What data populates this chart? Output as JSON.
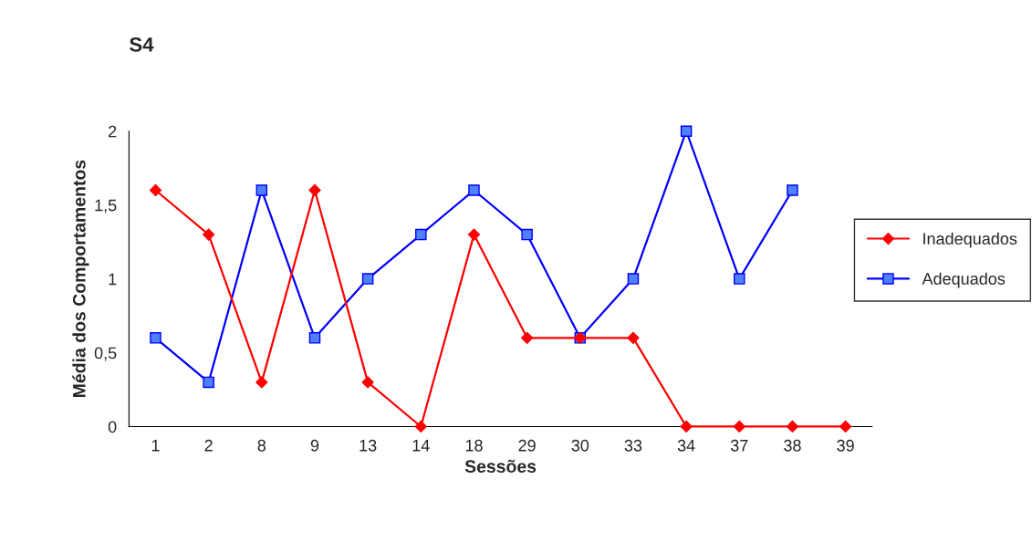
{
  "chart_data": {
    "type": "line",
    "title": "S4",
    "xlabel": "Sessões",
    "ylabel": "Média dos Comportamentos",
    "categories": [
      "1",
      "2",
      "8",
      "9",
      "13",
      "14",
      "18",
      "29",
      "30",
      "33",
      "34",
      "37",
      "38",
      "39"
    ],
    "series": [
      {
        "name": "Inadequados",
        "color": "#ff0000",
        "marker": "diamond",
        "values": [
          1.6,
          1.3,
          0.3,
          1.6,
          0.3,
          0,
          1.3,
          0.6,
          0.6,
          0.6,
          0,
          0,
          0,
          0
        ]
      },
      {
        "name": "Adequados",
        "color": "#0000ff",
        "marker": "square",
        "values": [
          0.6,
          0.3,
          1.6,
          0.6,
          1,
          1.3,
          1.6,
          1.3,
          0.6,
          1,
          2,
          1,
          1.6,
          null
        ]
      }
    ],
    "ylim": [
      0,
      2
    ],
    "yticks": [
      0,
      {
        "value": 0.5,
        "label": "0,5"
      },
      1,
      {
        "value": 1.5,
        "label": "1,5"
      },
      2
    ],
    "grid": false,
    "legend": "right"
  }
}
